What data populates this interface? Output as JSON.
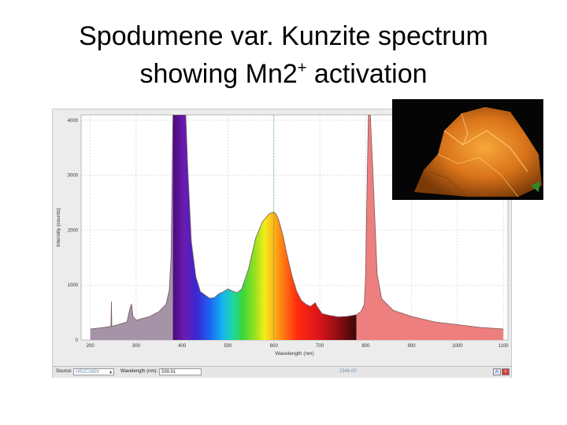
{
  "slide": {
    "title_line1": "Spodumene var. Kunzite spectrum",
    "title_line2_prefix": "showing Mn2",
    "title_line2_sup": "+",
    "title_line2_suffix": " activation"
  },
  "toolbar": {
    "source_label": "Source:",
    "source_value": "HR2C0859",
    "wavelength_label": "Wavelength (nm):",
    "wavelength_value": "599.91",
    "cursor_readout": "2346.00",
    "tool1_glyph": "Λ",
    "tool2_glyph": "×"
  },
  "colors": {
    "baseline_fill": "#a593a8",
    "mercury_fill": "#ee7f7f",
    "plot_background": "#ffffff",
    "frame_background": "#ececec",
    "outline": "#7a5a5a",
    "marker_line": "#3aa13a"
  },
  "photo": {
    "icon": "kunzite-photo-icon"
  },
  "chart_data": {
    "type": "line",
    "title": "",
    "xlabel": "Wavelength (nm)",
    "ylabel": "Intensity (counts)",
    "xlim": [
      180,
      1110
    ],
    "ylim": [
      0,
      4100
    ],
    "xticks": [
      200,
      300,
      400,
      500,
      600,
      700,
      800,
      900,
      1000,
      1100
    ],
    "yticks": [
      0,
      1000,
      2000,
      3000,
      4000
    ],
    "grid": true,
    "fill": "visible-spectrum gradient 380–780 nm",
    "cursor_x": 599.91,
    "series": [
      {
        "x": [
          200,
          230,
          245,
          246,
          247,
          260,
          280,
          287,
          290,
          293,
          300,
          330,
          350,
          365,
          372,
          376,
          380,
          384,
          402,
          408,
          412,
          420,
          430,
          440,
          450,
          460,
          470,
          480,
          490,
          500,
          510,
          520,
          530,
          545,
          560,
          575,
          590,
          600,
          605,
          610,
          620,
          630,
          640,
          650,
          660,
          670,
          680,
          690,
          695,
          700,
          705,
          720,
          740,
          760,
          780,
          790,
          797,
          800,
          802,
          806,
          810,
          815,
          820,
          825,
          835,
          860,
          900,
          950,
          1000,
          1050,
          1100
        ],
        "values": [
          200,
          230,
          250,
          700,
          250,
          280,
          330,
          600,
          650,
          430,
          360,
          430,
          520,
          650,
          900,
          1500,
          4100,
          4100,
          4100,
          4100,
          3200,
          1800,
          1150,
          880,
          820,
          760,
          770,
          840,
          880,
          930,
          890,
          860,
          930,
          1300,
          1850,
          2150,
          2300,
          2330,
          2290,
          2200,
          1900,
          1500,
          1150,
          880,
          720,
          650,
          610,
          680,
          600,
          540,
          480,
          450,
          420,
          430,
          460,
          520,
          650,
          1200,
          2300,
          4100,
          4100,
          3200,
          2200,
          1200,
          750,
          540,
          430,
          330,
          280,
          230,
          200
        ]
      }
    ]
  }
}
